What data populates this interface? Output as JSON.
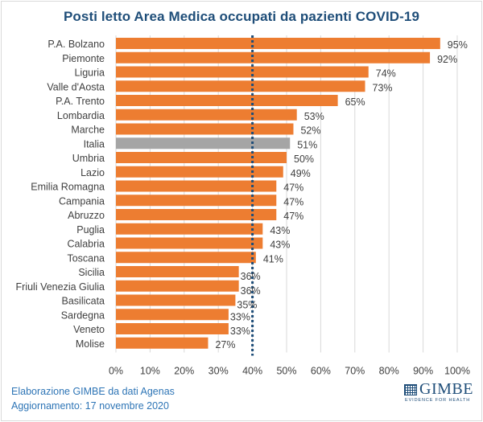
{
  "chart_data": {
    "type": "bar",
    "orientation": "horizontal",
    "title": "Posti letto Area Medica occupati da pazienti COVID-19",
    "xlabel": "",
    "ylabel": "",
    "xlim": [
      0,
      100
    ],
    "x_ticks": [
      "0%",
      "10%",
      "20%",
      "30%",
      "40%",
      "50%",
      "60%",
      "70%",
      "80%",
      "90%",
      "100%"
    ],
    "grid": "vertical",
    "threshold": {
      "value": 40,
      "style": "dotted",
      "color": "#1f4e79"
    },
    "categories": [
      "P.A. Bolzano",
      "Piemonte",
      "Liguria",
      "Valle d'Aosta",
      "P.A. Trento",
      "Lombardia",
      "Marche",
      "Italia",
      "Umbria",
      "Lazio",
      "Emilia Romagna",
      "Campania",
      "Abruzzo",
      "Puglia",
      "Calabria",
      "Toscana",
      "Sicilia",
      "Friuli Venezia Giulia",
      "Basilicata",
      "Sardegna",
      "Veneto",
      "Molise"
    ],
    "values": [
      95,
      92,
      74,
      73,
      65,
      53,
      52,
      51,
      50,
      49,
      47,
      47,
      47,
      43,
      43,
      41,
      36,
      36,
      35,
      33,
      33,
      27
    ],
    "labels": [
      "95%",
      "92%",
      "74%",
      "73%",
      "65%",
      "53%",
      "52%",
      "51%",
      "50%",
      "49%",
      "47%",
      "47%",
      "47%",
      "43%",
      "43%",
      "41%",
      "36%",
      "36%",
      "35%",
      "33%",
      "33%",
      "27%"
    ],
    "highlight_category": "Italia",
    "colors": {
      "bar": "#ed7d31",
      "highlight": "#a5a5a5",
      "grid": "#d9d9d9",
      "text": "#404040"
    }
  },
  "footer": {
    "source": "Elaborazione GIMBE da dati Agenas",
    "updated": "Aggiornamento:  17 novembre 2020"
  },
  "logo": {
    "name": "GIMBE",
    "tagline": "EVIDENCE FOR HEALTH"
  }
}
